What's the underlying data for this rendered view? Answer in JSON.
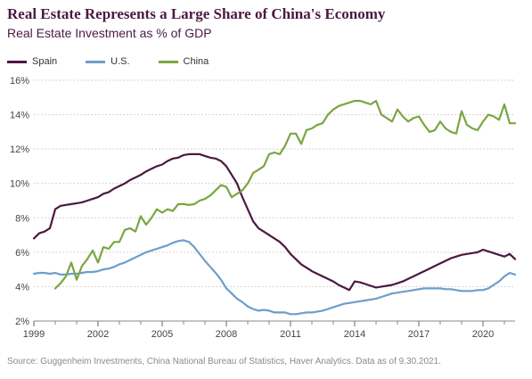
{
  "title": "Real Estate Represents a Large Share of China's Economy",
  "subtitle": "Real Estate Investment as % of GDP",
  "source": "Source: Guggenheim Investments, China National Bureau of Statistics, Haver Analytics. Data as of 9.30.2021.",
  "chart_data": {
    "type": "line",
    "title": "Real Estate Represents a Large Share of China's Economy",
    "subtitle": "Real Estate Investment as % of GDP",
    "xlabel": "",
    "ylabel": "",
    "xlim": [
      1999,
      2021.5
    ],
    "ylim": [
      2,
      16
    ],
    "x_ticks": [
      1999,
      2002,
      2005,
      2008,
      2011,
      2014,
      2017,
      2020
    ],
    "y_ticks": [
      2,
      4,
      6,
      8,
      10,
      12,
      14,
      16
    ],
    "y_tick_format": "%",
    "grid": "horizontal",
    "legend_position": "top-left",
    "series": [
      {
        "name": "Spain",
        "color": "#4a1942",
        "x": [
          1999.0,
          1999.25,
          1999.5,
          1999.75,
          2000.0,
          2000.25,
          2000.5,
          2000.75,
          2001.0,
          2001.25,
          2001.5,
          2001.75,
          2002.0,
          2002.25,
          2002.5,
          2002.75,
          2003.0,
          2003.25,
          2003.5,
          2003.75,
          2004.0,
          2004.25,
          2004.5,
          2004.75,
          2005.0,
          2005.25,
          2005.5,
          2005.75,
          2006.0,
          2006.25,
          2006.5,
          2006.75,
          2007.0,
          2007.25,
          2007.5,
          2007.75,
          2008.0,
          2008.25,
          2008.5,
          2008.75,
          2009.0,
          2009.25,
          2009.5,
          2009.75,
          2010.0,
          2010.25,
          2010.5,
          2010.75,
          2011.0,
          2011.25,
          2011.5,
          2011.75,
          2012.0,
          2012.25,
          2012.5,
          2012.75,
          2013.0,
          2013.25,
          2013.5,
          2013.75,
          2014.0,
          2014.25,
          2014.5,
          2014.75,
          2015.0,
          2015.25,
          2015.5,
          2015.75,
          2016.0,
          2016.25,
          2016.5,
          2016.75,
          2017.0,
          2017.25,
          2017.5,
          2017.75,
          2018.0,
          2018.25,
          2018.5,
          2018.75,
          2019.0,
          2019.25,
          2019.5,
          2019.75,
          2020.0,
          2020.25,
          2020.5,
          2020.75,
          2021.0,
          2021.25,
          2021.5
        ],
        "y": [
          6.8,
          7.1,
          7.2,
          7.4,
          8.5,
          8.7,
          8.75,
          8.8,
          8.85,
          8.9,
          9.0,
          9.1,
          9.2,
          9.4,
          9.5,
          9.7,
          9.85,
          10.0,
          10.2,
          10.35,
          10.5,
          10.7,
          10.85,
          11.0,
          11.1,
          11.3,
          11.45,
          11.5,
          11.65,
          11.7,
          11.7,
          11.7,
          11.6,
          11.5,
          11.45,
          11.3,
          11.0,
          10.5,
          10.0,
          9.2,
          8.5,
          7.8,
          7.4,
          7.2,
          7.0,
          6.8,
          6.6,
          6.3,
          5.9,
          5.6,
          5.3,
          5.1,
          4.9,
          4.75,
          4.6,
          4.45,
          4.3,
          4.1,
          3.95,
          3.8,
          4.3,
          4.25,
          4.15,
          4.05,
          3.95,
          4.0,
          4.05,
          4.1,
          4.2,
          4.3,
          4.45,
          4.6,
          4.75,
          4.9,
          5.05,
          5.2,
          5.35,
          5.5,
          5.65,
          5.75,
          5.85,
          5.9,
          5.95,
          6.0,
          6.15,
          6.05,
          5.95,
          5.85,
          5.75,
          5.9,
          5.6
        ]
      },
      {
        "name": "U.S.",
        "color": "#6d9ecb",
        "x": [
          1999.0,
          1999.25,
          1999.5,
          1999.75,
          2000.0,
          2000.25,
          2000.5,
          2000.75,
          2001.0,
          2001.25,
          2001.5,
          2001.75,
          2002.0,
          2002.25,
          2002.5,
          2002.75,
          2003.0,
          2003.25,
          2003.5,
          2003.75,
          2004.0,
          2004.25,
          2004.5,
          2004.75,
          2005.0,
          2005.25,
          2005.5,
          2005.75,
          2006.0,
          2006.25,
          2006.5,
          2006.75,
          2007.0,
          2007.25,
          2007.5,
          2007.75,
          2008.0,
          2008.25,
          2008.5,
          2008.75,
          2009.0,
          2009.25,
          2009.5,
          2009.75,
          2010.0,
          2010.25,
          2010.5,
          2010.75,
          2011.0,
          2011.25,
          2011.5,
          2011.75,
          2012.0,
          2012.25,
          2012.5,
          2012.75,
          2013.0,
          2013.25,
          2013.5,
          2013.75,
          2014.0,
          2014.25,
          2014.5,
          2014.75,
          2015.0,
          2015.25,
          2015.5,
          2015.75,
          2016.0,
          2016.25,
          2016.5,
          2016.75,
          2017.0,
          2017.25,
          2017.5,
          2017.75,
          2018.0,
          2018.25,
          2018.5,
          2018.75,
          2019.0,
          2019.25,
          2019.5,
          2019.75,
          2020.0,
          2020.25,
          2020.5,
          2020.75,
          2021.0,
          2021.25,
          2021.5
        ],
        "y": [
          4.75,
          4.8,
          4.8,
          4.75,
          4.8,
          4.7,
          4.7,
          4.75,
          4.75,
          4.8,
          4.85,
          4.85,
          4.9,
          5.0,
          5.05,
          5.15,
          5.3,
          5.4,
          5.55,
          5.7,
          5.85,
          6.0,
          6.1,
          6.2,
          6.3,
          6.4,
          6.55,
          6.65,
          6.7,
          6.6,
          6.3,
          5.9,
          5.5,
          5.15,
          4.8,
          4.4,
          3.9,
          3.6,
          3.3,
          3.1,
          2.85,
          2.7,
          2.6,
          2.65,
          2.6,
          2.5,
          2.5,
          2.5,
          2.4,
          2.4,
          2.45,
          2.5,
          2.5,
          2.55,
          2.6,
          2.7,
          2.8,
          2.9,
          3.0,
          3.05,
          3.1,
          3.15,
          3.2,
          3.25,
          3.3,
          3.4,
          3.5,
          3.6,
          3.65,
          3.7,
          3.75,
          3.8,
          3.85,
          3.9,
          3.9,
          3.9,
          3.9,
          3.85,
          3.85,
          3.8,
          3.75,
          3.75,
          3.75,
          3.8,
          3.8,
          3.9,
          4.1,
          4.3,
          4.6,
          4.8,
          4.7
        ]
      },
      {
        "name": "China",
        "color": "#7aa641",
        "x": [
          2000.0,
          2000.25,
          2000.5,
          2000.75,
          2001.0,
          2001.25,
          2001.5,
          2001.75,
          2002.0,
          2002.25,
          2002.5,
          2002.75,
          2003.0,
          2003.25,
          2003.5,
          2003.75,
          2004.0,
          2004.25,
          2004.5,
          2004.75,
          2005.0,
          2005.25,
          2005.5,
          2005.75,
          2006.0,
          2006.25,
          2006.5,
          2006.75,
          2007.0,
          2007.25,
          2007.5,
          2007.75,
          2008.0,
          2008.25,
          2008.5,
          2008.75,
          2009.0,
          2009.25,
          2009.5,
          2009.75,
          2010.0,
          2010.25,
          2010.5,
          2010.75,
          2011.0,
          2011.25,
          2011.5,
          2011.75,
          2012.0,
          2012.25,
          2012.5,
          2012.75,
          2013.0,
          2013.25,
          2013.5,
          2013.75,
          2014.0,
          2014.25,
          2014.5,
          2014.75,
          2015.0,
          2015.25,
          2015.5,
          2015.75,
          2016.0,
          2016.25,
          2016.5,
          2016.75,
          2017.0,
          2017.25,
          2017.5,
          2017.75,
          2018.0,
          2018.25,
          2018.5,
          2018.75,
          2019.0,
          2019.25,
          2019.5,
          2019.75,
          2020.0,
          2020.25,
          2020.5,
          2020.75,
          2021.0,
          2021.25,
          2021.5
        ],
        "y": [
          3.9,
          4.2,
          4.6,
          5.4,
          4.4,
          5.2,
          5.6,
          6.1,
          5.4,
          6.3,
          6.2,
          6.6,
          6.6,
          7.3,
          7.4,
          7.2,
          8.1,
          7.6,
          8.0,
          8.5,
          8.3,
          8.5,
          8.4,
          8.8,
          8.8,
          8.75,
          8.8,
          9.0,
          9.1,
          9.3,
          9.6,
          9.9,
          9.8,
          9.2,
          9.4,
          9.6,
          10.0,
          10.6,
          10.8,
          11.0,
          11.7,
          11.8,
          11.7,
          12.2,
          12.9,
          12.9,
          12.3,
          13.1,
          13.2,
          13.4,
          13.5,
          14.0,
          14.3,
          14.5,
          14.6,
          14.7,
          14.8,
          14.8,
          14.7,
          14.6,
          14.8,
          14.0,
          13.8,
          13.6,
          14.3,
          13.9,
          13.6,
          13.8,
          13.9,
          13.4,
          13.0,
          13.1,
          13.6,
          13.2,
          13.0,
          12.9,
          14.2,
          13.4,
          13.2,
          13.1,
          13.6,
          14.0,
          13.9,
          13.7,
          14.6,
          13.5,
          13.5
        ]
      }
    ]
  }
}
